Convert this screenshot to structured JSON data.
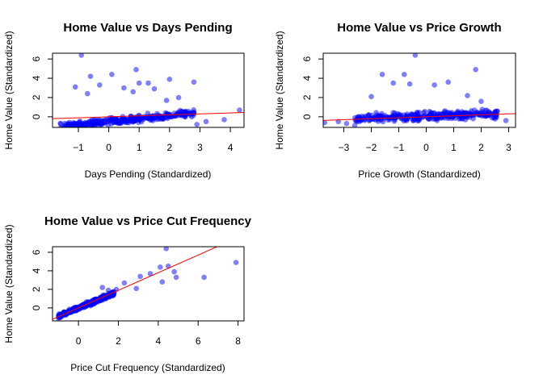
{
  "figure": {
    "point_color": "#0000FF",
    "point_opacity": 0.5,
    "line_color": "#FF0000"
  },
  "chart_data": [
    {
      "type": "scatter",
      "title": "Home Value vs Days Pending",
      "xlabel": "Days Pending (Standardized)",
      "ylabel": "Home Value (Standardized)",
      "xlim": [
        -1.85,
        4.45
      ],
      "ylim": [
        -1.1,
        6.6
      ],
      "xticks": [
        -1,
        0,
        1,
        2,
        3,
        4
      ],
      "yticks": [
        0,
        2,
        4,
        6
      ],
      "regression": {
        "slope": 0.1,
        "intercept": 0.0
      },
      "outliers": [
        [
          -0.9,
          6.4
        ],
        [
          0.9,
          4.9
        ],
        [
          -0.6,
          4.2
        ],
        [
          0.1,
          4.4
        ],
        [
          1.0,
          3.5
        ],
        [
          1.3,
          3.5
        ],
        [
          2.0,
          3.9
        ],
        [
          2.8,
          3.6
        ],
        [
          -1.1,
          3.1
        ],
        [
          -0.3,
          3.3
        ],
        [
          0.5,
          3.0
        ],
        [
          1.5,
          2.9
        ],
        [
          0.8,
          2.6
        ],
        [
          -0.7,
          2.4
        ],
        [
          2.3,
          2.0
        ],
        [
          1.9,
          1.7
        ],
        [
          4.3,
          0.7
        ],
        [
          3.8,
          -0.3
        ],
        [
          3.2,
          -0.5
        ],
        [
          2.9,
          -0.8
        ]
      ],
      "cloud": {
        "n": 330,
        "x": [
          -1.6,
          2.8
        ],
        "y_center": [
          -1.0,
          0.4
        ],
        "spread": 0.55
      }
    },
    {
      "type": "scatter",
      "title": "Home Value vs Price Growth",
      "xlabel": "Price Growth (Standardized)",
      "ylabel": "Home Value (Standardized)",
      "xlim": [
        -3.75,
        3.25
      ],
      "ylim": [
        -1.1,
        6.6
      ],
      "xticks": [
        -3,
        -2,
        -1,
        0,
        1,
        2,
        3
      ],
      "yticks": [
        0,
        2,
        4,
        6
      ],
      "regression": {
        "slope": 0.1,
        "intercept": 0.0
      },
      "outliers": [
        [
          -0.4,
          6.4
        ],
        [
          -1.6,
          4.4
        ],
        [
          -0.8,
          4.4
        ],
        [
          1.8,
          4.9
        ],
        [
          -1.2,
          3.5
        ],
        [
          -0.6,
          3.4
        ],
        [
          0.3,
          3.3
        ],
        [
          0.8,
          3.6
        ],
        [
          1.5,
          2.2
        ],
        [
          2.0,
          1.6
        ],
        [
          -2.0,
          2.1
        ],
        [
          -3.7,
          -0.6
        ],
        [
          -2.9,
          -0.7
        ],
        [
          -3.2,
          -0.5
        ],
        [
          2.9,
          -0.4
        ],
        [
          -2.6,
          -0.9
        ]
      ],
      "cloud": {
        "n": 330,
        "x": [
          -2.6,
          2.6
        ],
        "y_center": [
          -0.2,
          0.3
        ],
        "spread": 0.6
      }
    },
    {
      "type": "scatter",
      "title": "Home Value vs Price Cut Frequency",
      "xlabel": "Price Cut Frequency (Standardized)",
      "ylabel": "Home Value (Standardized)",
      "xlim": [
        -1.3,
        8.3
      ],
      "ylim": [
        -1.4,
        6.6
      ],
      "xticks": [
        0,
        2,
        4,
        6,
        8
      ],
      "yticks": [
        0,
        2,
        4,
        6
      ],
      "regression": {
        "slope": 0.95,
        "intercept": 0.0
      },
      "outliers": [
        [
          4.4,
          6.4
        ],
        [
          7.9,
          4.9
        ],
        [
          4.1,
          4.4
        ],
        [
          4.5,
          4.5
        ],
        [
          4.8,
          3.9
        ],
        [
          4.9,
          3.3
        ],
        [
          6.3,
          3.3
        ],
        [
          4.2,
          2.8
        ],
        [
          3.6,
          3.7
        ],
        [
          3.1,
          3.4
        ],
        [
          2.9,
          2.1
        ],
        [
          2.3,
          2.7
        ],
        [
          1.9,
          2.0
        ],
        [
          1.5,
          1.9
        ],
        [
          1.2,
          2.2
        ]
      ],
      "cloud": {
        "n": 330,
        "x": [
          -1.0,
          1.8
        ],
        "y_center": [
          -0.9,
          1.6
        ],
        "spread": 0.35
      }
    }
  ]
}
